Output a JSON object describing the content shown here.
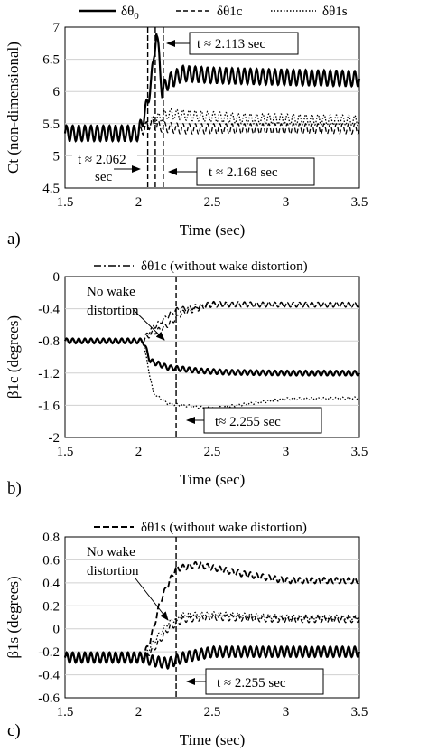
{
  "legend_top": {
    "items": [
      {
        "label": "δθ",
        "sub": "0",
        "style": "solid"
      },
      {
        "label": "δθ1c",
        "sub": "",
        "style": "dashed"
      },
      {
        "label": "δθ1s",
        "sub": "",
        "style": "dotted"
      }
    ]
  },
  "chart_data": [
    {
      "type": "line",
      "panel_label": "a)",
      "xlabel": "Time (sec)",
      "ylabel": "Ct (non-dimensional)",
      "xlim": [
        1.5,
        3.5
      ],
      "ylim": [
        4.5,
        7
      ],
      "xticks": [
        "1.5",
        "2",
        "2.5",
        "3",
        "3.5"
      ],
      "yticks": [
        "4.5",
        "5",
        "5.5",
        "6",
        "6.5",
        "7"
      ],
      "series": [
        {
          "name": "δθ0",
          "style": "solid",
          "color": "#000000",
          "x": [
            1.5,
            2.0,
            2.06,
            2.1,
            2.12,
            2.14,
            2.16,
            2.2,
            2.3,
            2.5,
            3.0,
            3.5
          ],
          "y": [
            5.35,
            5.35,
            5.8,
            6.4,
            6.98,
            6.5,
            6.0,
            6.15,
            6.28,
            6.25,
            6.22,
            6.2
          ],
          "oscillation_amplitude": 0.12
        },
        {
          "name": "δθ1c",
          "style": "dashed",
          "color": "#000000",
          "x": [
            1.5,
            2.0,
            2.08,
            2.15,
            2.3,
            2.5,
            3.0,
            3.5
          ],
          "y": [
            5.35,
            5.35,
            5.5,
            5.45,
            5.42,
            5.42,
            5.42,
            5.42
          ],
          "oscillation_amplitude": 0.08
        },
        {
          "name": "δθ1s",
          "style": "dotted",
          "color": "#000000",
          "x": [
            1.5,
            2.0,
            2.1,
            2.2,
            2.4,
            2.7,
            3.0,
            3.5
          ],
          "y": [
            5.35,
            5.35,
            5.55,
            5.65,
            5.62,
            5.58,
            5.57,
            5.55
          ],
          "oscillation_amplitude": 0.08
        }
      ],
      "vlines": [
        2.062,
        2.113,
        2.168
      ],
      "annotations": [
        {
          "text": "t ≈ 2.113 sec",
          "boxed": true
        },
        {
          "text": "t ≈ 2.062",
          "text2": "sec",
          "boxed": false
        },
        {
          "text": "t ≈ 2.168 sec",
          "boxed": true
        }
      ]
    },
    {
      "type": "line",
      "panel_label": "b)",
      "legend": "δθ1c (without wake distortion)",
      "xlabel": "Time (sec)",
      "ylabel": "β1c (degrees)",
      "xlim": [
        1.5,
        3.5
      ],
      "ylim": [
        -2,
        0
      ],
      "xticks": [
        "1.5",
        "2",
        "2.5",
        "3",
        "3.5"
      ],
      "yticks": [
        "-2",
        "-1.6",
        "-1.2",
        "-0.8",
        "-0.4",
        "0"
      ],
      "series": [
        {
          "name": "δθ0",
          "style": "solid",
          "color": "#000000",
          "x": [
            1.5,
            2.03,
            2.08,
            2.2,
            2.4,
            2.6,
            3.0,
            3.5
          ],
          "y": [
            -0.8,
            -0.8,
            -1.05,
            -1.13,
            -1.17,
            -1.19,
            -1.2,
            -1.2
          ],
          "oscillation_amplitude": 0.03
        },
        {
          "name": "δθ1c",
          "style": "dashed",
          "color": "#000000",
          "x": [
            1.5,
            2.03,
            2.08,
            2.2,
            2.3,
            2.5,
            3.0,
            3.5
          ],
          "y": [
            -0.8,
            -0.8,
            -0.72,
            -0.6,
            -0.45,
            -0.35,
            -0.35,
            -0.35
          ],
          "oscillation_amplitude": 0.03
        },
        {
          "name": "δθ1s",
          "style": "dotted",
          "color": "#000000",
          "x": [
            1.5,
            2.03,
            2.1,
            2.2,
            2.5,
            3.0,
            3.5
          ],
          "y": [
            -0.8,
            -0.8,
            -1.45,
            -1.58,
            -1.64,
            -1.52,
            -1.51
          ],
          "oscillation_amplitude": 0.015
        },
        {
          "name": "δθ1c (without wake distortion)",
          "style": "dashdot",
          "color": "#000000",
          "x": [
            1.5,
            2.03,
            2.08,
            2.15,
            2.25,
            2.5,
            3.0,
            3.5
          ],
          "y": [
            -0.8,
            -0.8,
            -0.66,
            -0.56,
            -0.42,
            -0.34,
            -0.35,
            -0.35
          ],
          "oscillation_amplitude": 0.03
        }
      ],
      "vlines": [
        2.255
      ],
      "annotations": [
        {
          "text": "No wake",
          "text2": "distortion",
          "boxed": false
        },
        {
          "text": "t≈ 2.255 sec",
          "boxed": true
        }
      ]
    },
    {
      "type": "line",
      "panel_label": "c)",
      "legend": "δθ1s (without wake distortion)",
      "xlabel": "Time (sec)",
      "ylabel": "β1s (degrees)",
      "xlim": [
        1.5,
        3.5
      ],
      "ylim": [
        -0.6,
        0.8
      ],
      "xticks": [
        "1.5",
        "2",
        "2.5",
        "3",
        "3.5"
      ],
      "yticks": [
        "-0.6",
        "-0.4",
        "-0.2",
        "0",
        "0.2",
        "0.4",
        "0.6",
        "0.8"
      ],
      "series": [
        {
          "name": "δθ0",
          "style": "solid",
          "color": "#000000",
          "x": [
            1.5,
            2.03,
            2.1,
            2.2,
            2.3,
            2.5,
            3.0,
            3.5
          ],
          "y": [
            -0.25,
            -0.25,
            -0.28,
            -0.3,
            -0.25,
            -0.2,
            -0.2,
            -0.2
          ],
          "oscillation_amplitude": 0.045
        },
        {
          "name": "δθ1c",
          "style": "dashed",
          "color": "#000000",
          "x": [
            1.5,
            2.03,
            2.1,
            2.2,
            2.3,
            2.5,
            3.0,
            3.5
          ],
          "y": [
            -0.25,
            -0.25,
            -0.18,
            0.0,
            0.08,
            0.1,
            0.08,
            0.08
          ],
          "oscillation_amplitude": 0.025
        },
        {
          "name": "δθ1s",
          "style": "dotted",
          "color": "#000000",
          "x": [
            1.5,
            2.03,
            2.1,
            2.2,
            2.3,
            2.5,
            3.0,
            3.5
          ],
          "y": [
            -0.25,
            -0.25,
            -0.12,
            0.05,
            0.12,
            0.13,
            0.1,
            0.1
          ],
          "oscillation_amplitude": 0.02
        },
        {
          "name": "δθ1s (without wake distortion)",
          "style": "longdash",
          "color": "#000000",
          "x": [
            1.5,
            2.03,
            2.08,
            2.15,
            2.25,
            2.4,
            2.7,
            3.0,
            3.5
          ],
          "y": [
            -0.25,
            -0.25,
            -0.1,
            0.25,
            0.52,
            0.56,
            0.48,
            0.42,
            0.42
          ],
          "oscillation_amplitude": 0.025
        }
      ],
      "vlines": [
        2.255
      ],
      "annotations": [
        {
          "text": "No wake",
          "text2": "distortion",
          "boxed": false
        },
        {
          "text": "t ≈ 2.255 sec",
          "boxed": true
        }
      ]
    }
  ]
}
